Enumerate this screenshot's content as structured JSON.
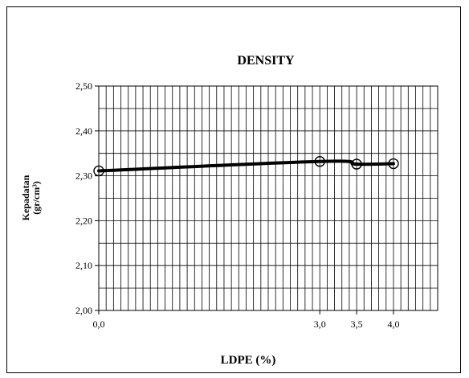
{
  "chart_data": {
    "type": "line",
    "title": "DENSITY",
    "xlabel": "LDPE (%)",
    "ylabel": "Kepadatan",
    "ylabel_unit": "(gr/cm³)",
    "xlim": [
      0,
      4.6
    ],
    "ylim": [
      2.0,
      2.5
    ],
    "y_ticks": [
      "2,00",
      "2,10",
      "2,20",
      "2,30",
      "2,40",
      "2,50"
    ],
    "y_tick_values": [
      2.0,
      2.1,
      2.2,
      2.3,
      2.4,
      2.5
    ],
    "x_ticks": [
      "0,0",
      "3,0",
      "3,5",
      "4,0"
    ],
    "x_tick_values": [
      0.0,
      3.0,
      3.5,
      4.0
    ],
    "grid": true,
    "series": [
      {
        "x": [
          0.0,
          3.0,
          3.5,
          4.0
        ],
        "y": [
          2.311,
          2.332,
          2.326,
          2.327
        ],
        "color": "#000000"
      }
    ]
  }
}
